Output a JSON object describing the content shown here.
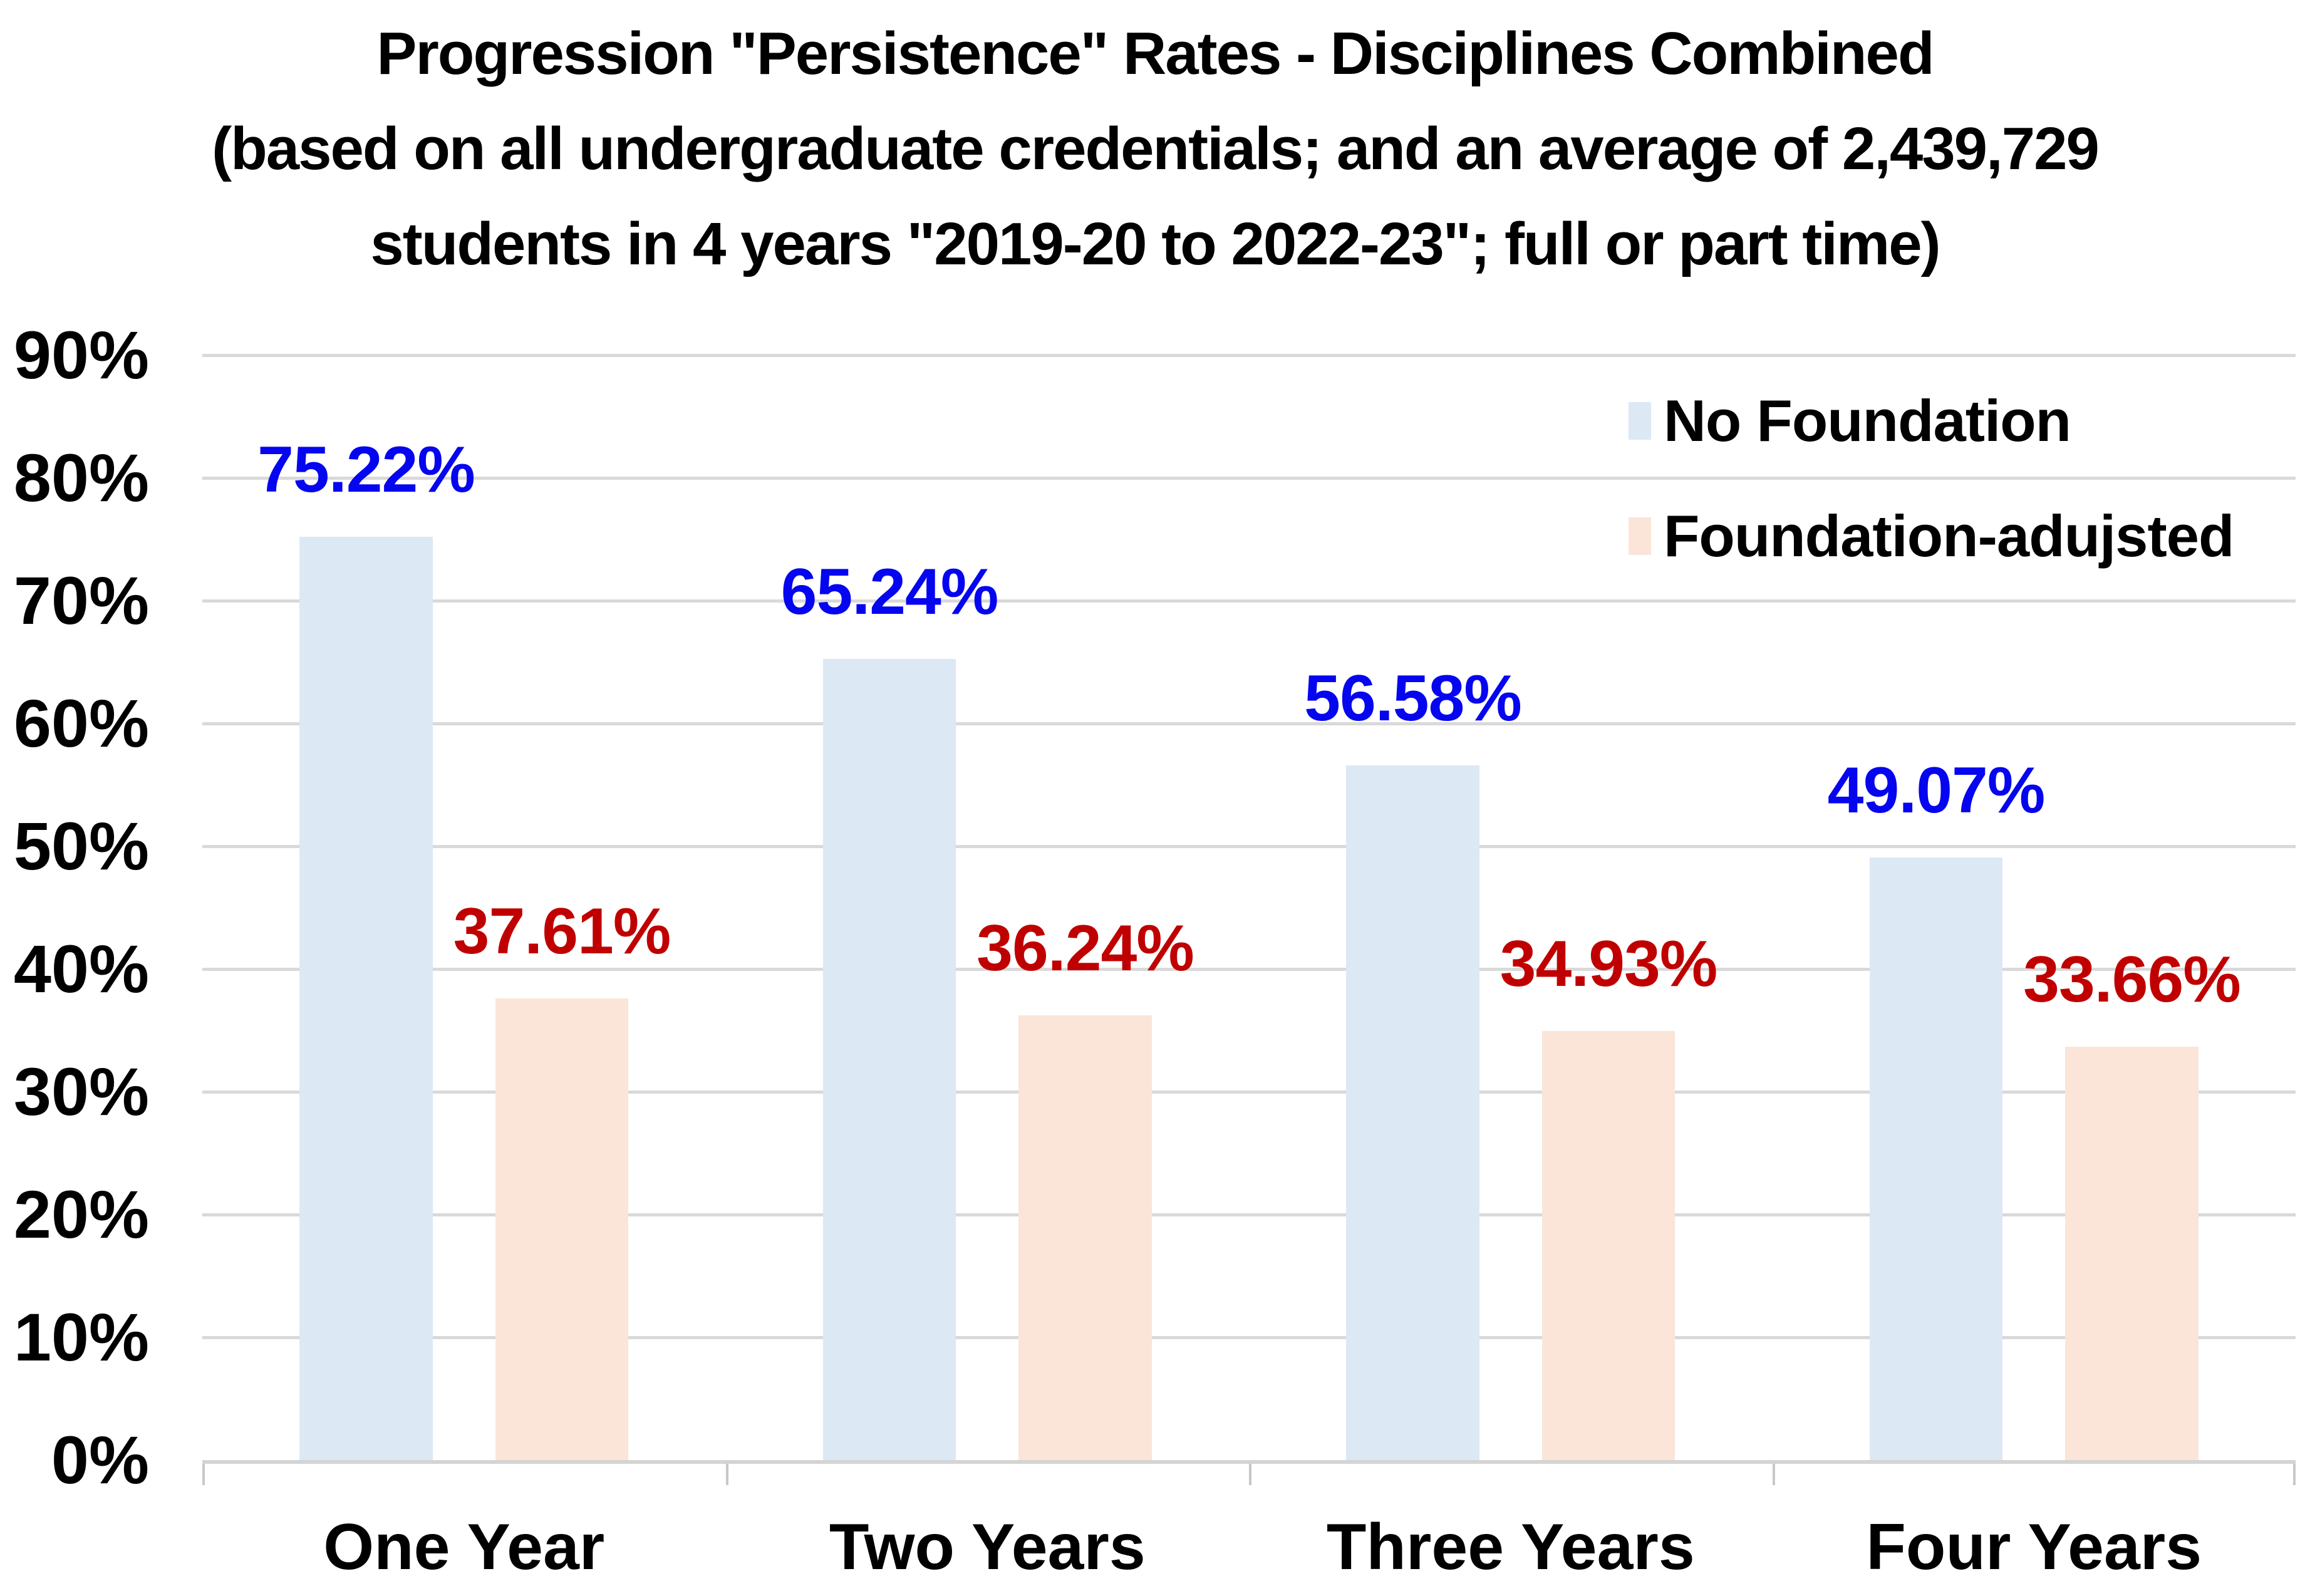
{
  "chart_data": {
    "type": "bar",
    "title_lines": [
      "Progression \"Persistence\" Rates - Disciplines Combined",
      "(based on all undergraduate credentials; and an average of 2,439,729",
      "students in 4 years \"2019-20 to 2022-23\"; full or part time)"
    ],
    "categories": [
      "One Year",
      "Two Years",
      "Three Years",
      "Four Years"
    ],
    "series": [
      {
        "name": "No Foundation",
        "color": "#dce8f4",
        "label_color": "#0505f0",
        "values": [
          75.22,
          65.24,
          56.58,
          49.07
        ],
        "labels": [
          "75.22%",
          "65.24%",
          "56.58%",
          "49.07%"
        ]
      },
      {
        "name": "Foundation-adujsted",
        "color": "#fbe5d8",
        "label_color": "#c00000",
        "values": [
          37.61,
          36.24,
          34.93,
          33.66
        ],
        "labels": [
          "37.61%",
          "36.24%",
          "34.93%",
          "33.66%"
        ]
      }
    ],
    "y_axis": {
      "min": 0,
      "max": 90,
      "step": 10,
      "tick_labels": [
        "90%",
        "80%",
        "70%",
        "60%",
        "50%",
        "40%",
        "30%",
        "20%",
        "10%",
        "0%"
      ]
    },
    "grid": true,
    "legend_position": "top-right",
    "gridline_color": "#d9d9d9",
    "axis_line_color": "#d4d4d4"
  }
}
